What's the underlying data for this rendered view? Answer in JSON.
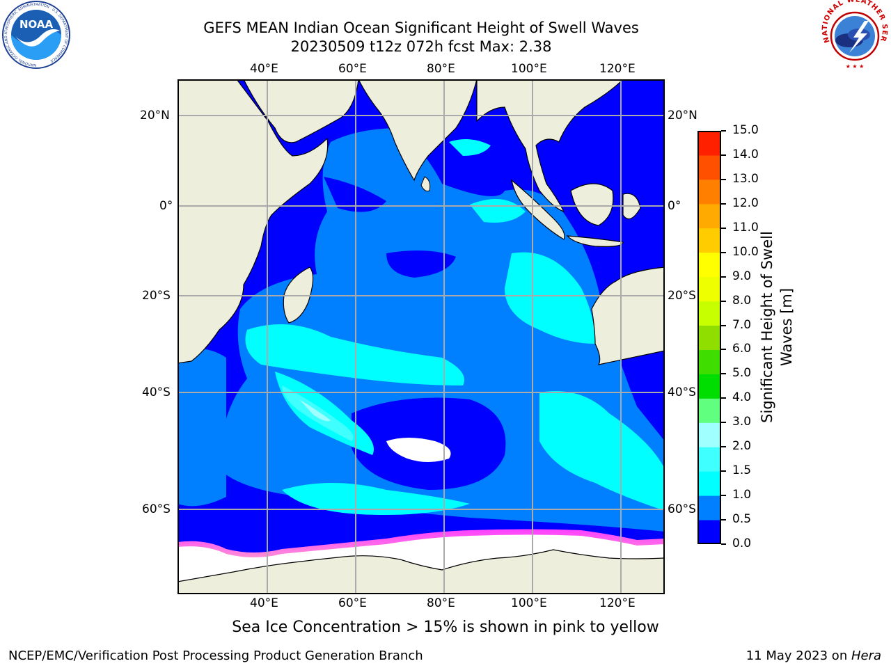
{
  "header": {
    "title_line1": "GEFS MEAN Indian Ocean Significant Height of Swell Waves",
    "title_line2": "20230509 t12z 072h fcst   Max: 2.38"
  },
  "logos": {
    "noaa_text": "NOAA",
    "noaa_ring_text": "NATIONAL OCEANIC AND ATMOSPHERIC ADMINISTRATION · U.S. DEPARTMENT OF COMMERCE",
    "nws_ring_text": "NATIONAL WEATHER SERVICE"
  },
  "map": {
    "lon_ticks": [
      "40°E",
      "60°E",
      "80°E",
      "100°E",
      "120°E"
    ],
    "lat_ticks": [
      "20°N",
      "0°",
      "20°S",
      "40°S",
      "60°S"
    ],
    "lon_range": [
      20,
      129
    ],
    "lat_range": [
      -78,
      27
    ],
    "colors": {
      "land": "#eeeedd",
      "sea_ice": "#ffffff"
    }
  },
  "colorbar": {
    "label": "Significant Height of Swell Waves [m]",
    "label_line1": "Significant Height of Swell",
    "label_line2": "Waves [m]",
    "ticks": [
      "0.0",
      "0.5",
      "1.0",
      "1.5",
      "2.0",
      "3.0",
      "4.0",
      "5.0",
      "6.0",
      "7.0",
      "8.0",
      "9.0",
      "10.0",
      "11.0",
      "12.0",
      "13.0",
      "14.0",
      "15.0"
    ],
    "colors": [
      "#0000ff",
      "#0080ff",
      "#00ffff",
      "#40ffff",
      "#a0ffff",
      "#60ff80",
      "#00dd00",
      "#40dd00",
      "#90dd00",
      "#c8ff00",
      "#eeff00",
      "#ffff00",
      "#ffcc00",
      "#ffaa00",
      "#ff8000",
      "#ff5000",
      "#ff2000"
    ]
  },
  "caption": "Sea Ice Concentration > 15% is shown in pink to yellow",
  "footer": {
    "left": "NCEP/EMC/Verification Post Processing Product Generation Branch",
    "right_prefix": "11 May 2023 on ",
    "right_machine": "Hera"
  }
}
